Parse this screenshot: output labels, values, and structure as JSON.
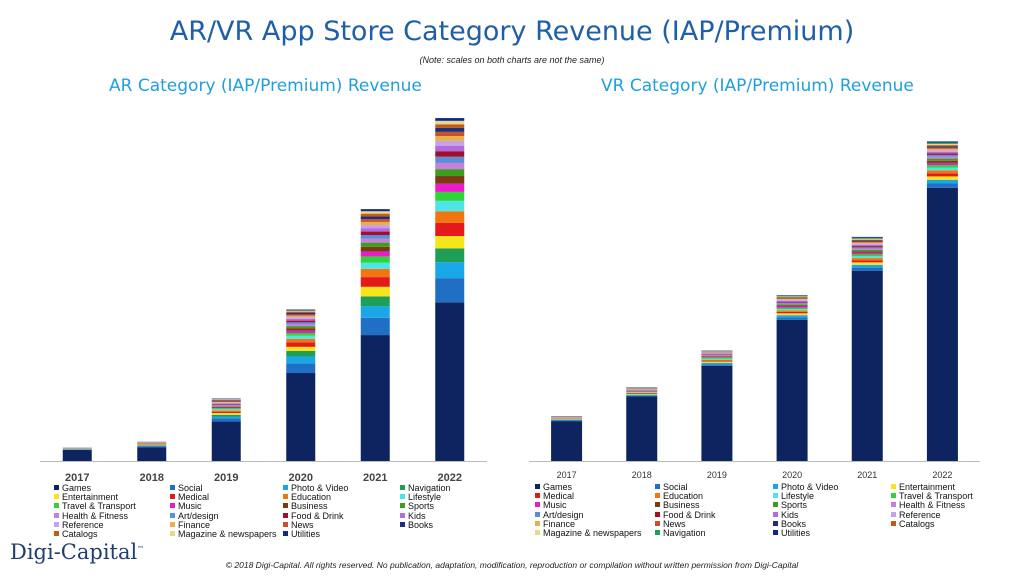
{
  "page": {
    "title": "AR/VR App Store Category Revenue (IAP/Premium)",
    "note": "(Note: scales on both charts are not the same)",
    "logo": "Digi-Capital",
    "logo_mark": "™",
    "copyright": "© 2018 Digi-Capital. All rights reserved. No publication, adaptation, modification, reproduction or compilation without written permission from Digi-Capital"
  },
  "colors": {
    "Games": "#0d2461",
    "Social": "#1f6fc4",
    "Photo & Video": "#1aa7e8",
    "Navigation": "#1f9e57",
    "Entertainment": "#f5e61c",
    "Medical": "#e3191b",
    "Education": "#f2760f",
    "Lifestyle": "#4de6e6",
    "Travel & Transport": "#2ed43a",
    "Music": "#e81cc9",
    "Business": "#7b3a14",
    "Sports": "#3c9d1e",
    "Health & Fitness": "#c97fdc",
    "Art/design": "#5b8fd6",
    "Food & Drink": "#a00f2e",
    "Kids": "#b36be0",
    "Reference": "#c8a2e8",
    "Finance": "#e8b04a",
    "News": "#c7502e",
    "Books": "#1d2f7a",
    "Catalogs": "#c25b16",
    "Magazine & newspapers": "#e8d98a",
    "Utilities": "#102a8a"
  },
  "chart_data": [
    {
      "type": "bar",
      "stacked": true,
      "title": "AR Category (IAP/Premium) Revenue",
      "categories": [
        "2017",
        "2018",
        "2019",
        "2020",
        "2021",
        "2022"
      ],
      "ylim": [
        0,
        100
      ],
      "series": [
        {
          "name": "Games",
          "values": [
            3.2,
            4.0,
            11.5,
            25.5,
            36.5,
            46.0
          ]
        },
        {
          "name": "Social",
          "values": [
            0.1,
            0.2,
            0.8,
            2.8,
            5.0,
            7.0
          ]
        },
        {
          "name": "Photo & Video",
          "values": [
            0.1,
            0.2,
            0.6,
            2.0,
            3.4,
            4.6
          ]
        },
        {
          "name": "Navigation",
          "values": [
            0.05,
            0.1,
            0.5,
            1.6,
            2.8,
            4.0
          ]
        },
        {
          "name": "Entertainment",
          "values": [
            0.05,
            0.1,
            0.5,
            1.2,
            2.8,
            3.6
          ]
        },
        {
          "name": "Medical",
          "values": [
            0.05,
            0.1,
            0.4,
            1.3,
            2.8,
            3.8
          ]
        },
        {
          "name": "Education",
          "values": [
            0.05,
            0.1,
            0.4,
            1.0,
            2.4,
            3.4
          ]
        },
        {
          "name": "Lifestyle",
          "values": [
            0.02,
            0.05,
            0.3,
            0.9,
            1.8,
            3.0
          ]
        },
        {
          "name": "Travel & Transport",
          "values": [
            0.02,
            0.05,
            0.3,
            0.8,
            1.8,
            2.6
          ]
        },
        {
          "name": "Music",
          "values": [
            0.02,
            0.05,
            0.2,
            0.7,
            1.4,
            2.4
          ]
        },
        {
          "name": "Business",
          "values": [
            0.02,
            0.05,
            0.2,
            0.7,
            1.4,
            2.2
          ]
        },
        {
          "name": "Sports",
          "values": [
            0.02,
            0.05,
            0.2,
            0.6,
            1.2,
            2.0
          ]
        },
        {
          "name": "Health & Fitness",
          "values": [
            0.02,
            0.05,
            0.2,
            0.6,
            1.1,
            1.8
          ]
        },
        {
          "name": "Art/design",
          "values": [
            0.02,
            0.05,
            0.2,
            0.5,
            1.1,
            1.8
          ]
        },
        {
          "name": "Food & Drink",
          "values": [
            0.02,
            0.05,
            0.2,
            0.5,
            1.0,
            1.6
          ]
        },
        {
          "name": "Kids",
          "values": [
            0.02,
            0.05,
            0.2,
            0.5,
            1.0,
            1.6
          ]
        },
        {
          "name": "Reference",
          "values": [
            0.02,
            0.05,
            0.2,
            0.5,
            0.9,
            1.4
          ]
        },
        {
          "name": "Finance",
          "values": [
            0.02,
            0.05,
            0.2,
            0.4,
            0.9,
            1.4
          ]
        },
        {
          "name": "News",
          "values": [
            0.02,
            0.05,
            0.2,
            0.4,
            0.8,
            1.2
          ]
        },
        {
          "name": "Books",
          "values": [
            0.02,
            0.05,
            0.2,
            0.4,
            0.8,
            1.2
          ]
        },
        {
          "name": "Catalogs",
          "values": [
            0.02,
            0.05,
            0.2,
            0.4,
            0.8,
            1.0
          ]
        },
        {
          "name": "Magazine & newspapers",
          "values": [
            0.02,
            0.05,
            0.2,
            0.3,
            0.7,
            1.0
          ]
        },
        {
          "name": "Utilities",
          "values": [
            0.02,
            0.05,
            0.2,
            0.3,
            0.6,
            0.8
          ]
        }
      ]
    },
    {
      "type": "bar",
      "stacked": true,
      "title": "VR Category (IAP/Premium) Revenue",
      "categories": [
        "2017",
        "2018",
        "2019",
        "2020",
        "2021",
        "2022"
      ],
      "ylim": [
        0,
        100
      ],
      "series": [
        {
          "name": "Games",
          "values": [
            13.0,
            21.0,
            31.0,
            46.0,
            62.0,
            89.0
          ]
        },
        {
          "name": "Social",
          "values": [
            0.2,
            0.3,
            0.5,
            0.8,
            1.0,
            1.4
          ]
        },
        {
          "name": "Photo & Video",
          "values": [
            0.2,
            0.3,
            0.5,
            0.7,
            0.9,
            1.2
          ]
        },
        {
          "name": "Entertainment",
          "values": [
            0.1,
            0.2,
            0.4,
            0.6,
            0.8,
            1.1
          ]
        },
        {
          "name": "Medical",
          "values": [
            0.1,
            0.2,
            0.3,
            0.5,
            0.7,
            1.0
          ]
        },
        {
          "name": "Education",
          "values": [
            0.1,
            0.2,
            0.3,
            0.5,
            0.7,
            1.0
          ]
        },
        {
          "name": "Lifestyle",
          "values": [
            0.1,
            0.2,
            0.3,
            0.4,
            0.6,
            0.9
          ]
        },
        {
          "name": "Travel & Transport",
          "values": [
            0.1,
            0.1,
            0.3,
            0.4,
            0.6,
            0.8
          ]
        },
        {
          "name": "Music",
          "values": [
            0.05,
            0.1,
            0.2,
            0.4,
            0.5,
            0.7
          ]
        },
        {
          "name": "Business",
          "values": [
            0.05,
            0.1,
            0.2,
            0.4,
            0.5,
            0.7
          ]
        },
        {
          "name": "Sports",
          "values": [
            0.05,
            0.1,
            0.2,
            0.3,
            0.5,
            0.7
          ]
        },
        {
          "name": "Health & Fitness",
          "values": [
            0.05,
            0.1,
            0.2,
            0.3,
            0.4,
            0.6
          ]
        },
        {
          "name": "Art/design",
          "values": [
            0.05,
            0.1,
            0.2,
            0.3,
            0.4,
            0.6
          ]
        },
        {
          "name": "Food & Drink",
          "values": [
            0.05,
            0.1,
            0.2,
            0.3,
            0.4,
            0.5
          ]
        },
        {
          "name": "Kids",
          "values": [
            0.05,
            0.1,
            0.2,
            0.3,
            0.4,
            0.5
          ]
        },
        {
          "name": "Reference",
          "values": [
            0.05,
            0.1,
            0.2,
            0.3,
            0.4,
            0.5
          ]
        },
        {
          "name": "Finance",
          "values": [
            0.05,
            0.1,
            0.2,
            0.3,
            0.4,
            0.5
          ]
        },
        {
          "name": "News",
          "values": [
            0.05,
            0.1,
            0.1,
            0.2,
            0.3,
            0.4
          ]
        },
        {
          "name": "Books",
          "values": [
            0.05,
            0.1,
            0.1,
            0.2,
            0.3,
            0.4
          ]
        },
        {
          "name": "Catalogs",
          "values": [
            0.05,
            0.1,
            0.1,
            0.2,
            0.3,
            0.4
          ]
        },
        {
          "name": "Magazine & newspapers",
          "values": [
            0.05,
            0.1,
            0.1,
            0.2,
            0.3,
            0.4
          ]
        },
        {
          "name": "Navigation",
          "values": [
            0.05,
            0.1,
            0.1,
            0.2,
            0.3,
            0.4
          ]
        },
        {
          "name": "Utilities",
          "values": [
            0.05,
            0.1,
            0.1,
            0.2,
            0.3,
            0.4
          ]
        }
      ]
    }
  ],
  "legends": {
    "ar": [
      [
        "Games",
        "Social",
        "Photo & Video",
        "Navigation"
      ],
      [
        "Entertainment",
        "Medical",
        "Education",
        "Lifestyle"
      ],
      [
        "Travel & Transport",
        "Music",
        "Business",
        "Sports"
      ],
      [
        "Health & Fitness",
        "Art/design",
        "Food & Drink",
        "Kids"
      ],
      [
        "Reference",
        "Finance",
        "News",
        "Books"
      ],
      [
        "Catalogs",
        "Magazine & newspapers",
        "Utilities",
        ""
      ]
    ],
    "vr": [
      [
        "Games",
        "Social",
        "Photo & Video",
        "Entertainment"
      ],
      [
        "Medical",
        "Education",
        "Lifestyle",
        "Travel & Transport"
      ],
      [
        "Music",
        "Business",
        "Sports",
        "Health & Fitness"
      ],
      [
        "Art/design",
        "Food & Drink",
        "Kids",
        "Reference"
      ],
      [
        "Finance",
        "News",
        "Books",
        "Catalogs"
      ],
      [
        "Magazine & newspapers",
        "Navigation",
        "Utilities",
        ""
      ]
    ]
  }
}
